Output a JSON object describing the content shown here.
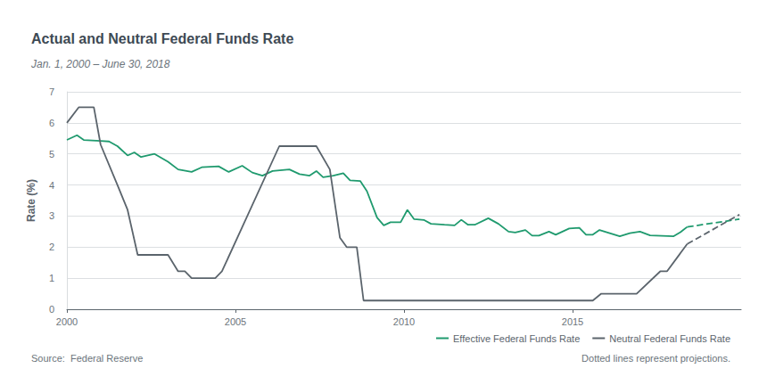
{
  "chart_data": {
    "type": "line",
    "title": "Actual and Neutral Federal Funds Rate",
    "subtitle": "Jan. 1, 2000 – June 30, 2018",
    "y_label": "Rate (%)",
    "source": "Source:  Federal Reserve",
    "annotations": [
      "Dotted lines represent projections."
    ],
    "xlim": [
      2000,
      2020
    ],
    "xticks": [
      2000,
      2005,
      2010,
      2015
    ],
    "ylim": [
      0,
      7
    ],
    "yticks": [
      0,
      1,
      2,
      3,
      4,
      5,
      6,
      7
    ],
    "grid": true,
    "legend": "bottom-right",
    "series": [
      {
        "name": "Effective Federal Funds Rate",
        "color": "#1f9a6e",
        "line_style": "solid",
        "x": [
          2000.0,
          2000.3,
          2000.5,
          2001.0,
          2001.25,
          2001.5,
          2001.8,
          2002.0,
          2002.2,
          2002.6,
          2003.0,
          2003.3,
          2003.7,
          2004.0,
          2004.5,
          2004.8,
          2005.2,
          2005.5,
          2005.8,
          2006.1,
          2006.6,
          2006.9,
          2007.2,
          2007.4,
          2007.6,
          2007.9,
          2008.2,
          2008.4,
          2008.7,
          2008.9,
          2009.2,
          2009.4,
          2009.6,
          2009.9,
          2010.1,
          2010.3,
          2010.6,
          2010.8,
          2011.2,
          2011.5,
          2011.7,
          2011.9,
          2012.1,
          2012.5,
          2012.8,
          2013.1,
          2013.3,
          2013.6,
          2013.8,
          2014.0,
          2014.3,
          2014.5,
          2014.9,
          2015.2,
          2015.4,
          2015.6,
          2015.8,
          2016.1,
          2016.4,
          2016.7,
          2017.0,
          2017.3,
          2018.0,
          2018.2,
          2018.4
        ],
        "values": [
          5.45,
          5.6,
          5.45,
          5.42,
          5.4,
          5.25,
          4.95,
          5.05,
          4.9,
          5.0,
          4.75,
          4.5,
          4.42,
          4.57,
          4.6,
          4.42,
          4.62,
          4.4,
          4.3,
          4.45,
          4.5,
          4.35,
          4.3,
          4.45,
          4.25,
          4.3,
          4.38,
          4.15,
          4.13,
          3.8,
          2.95,
          2.7,
          2.8,
          2.8,
          3.2,
          2.9,
          2.87,
          2.75,
          2.72,
          2.7,
          2.88,
          2.72,
          2.72,
          2.93,
          2.75,
          2.5,
          2.47,
          2.55,
          2.37,
          2.37,
          2.5,
          2.4,
          2.6,
          2.62,
          2.4,
          2.4,
          2.55,
          2.45,
          2.35,
          2.45,
          2.5,
          2.38,
          2.35,
          2.48,
          2.65
        ]
      },
      {
        "name": "Neutral Federal Funds Rate",
        "color": "#5b646c",
        "line_style": "solid",
        "x": [
          2000.0,
          2000.35,
          2000.8,
          2001.0,
          2001.5,
          2001.8,
          2002.1,
          2003.0,
          2003.3,
          2003.5,
          2003.7,
          2004.4,
          2004.6,
          2006.3,
          2007.4,
          2007.8,
          2008.1,
          2008.3,
          2008.6,
          2008.8,
          2015.6,
          2015.85,
          2016.9,
          2017.6,
          2017.8,
          2018.4
        ],
        "values": [
          6.0,
          6.5,
          6.5,
          5.3,
          4.0,
          3.2,
          1.75,
          1.75,
          1.22,
          1.22,
          1.0,
          1.0,
          1.22,
          5.25,
          5.25,
          4.5,
          2.3,
          2.0,
          2.0,
          0.28,
          0.28,
          0.5,
          0.5,
          1.22,
          1.22,
          2.1
        ]
      },
      {
        "name": "Effective Federal Funds Rate",
        "color": "#1f9a6e",
        "line_style": "dashed",
        "x": [
          2018.4,
          2019.95
        ],
        "values": [
          2.65,
          2.9
        ]
      },
      {
        "name": "Neutral Federal Funds Rate",
        "color": "#5b646c",
        "line_style": "dashed",
        "x": [
          2018.4,
          2019.95
        ],
        "values": [
          2.1,
          3.05
        ]
      }
    ]
  }
}
